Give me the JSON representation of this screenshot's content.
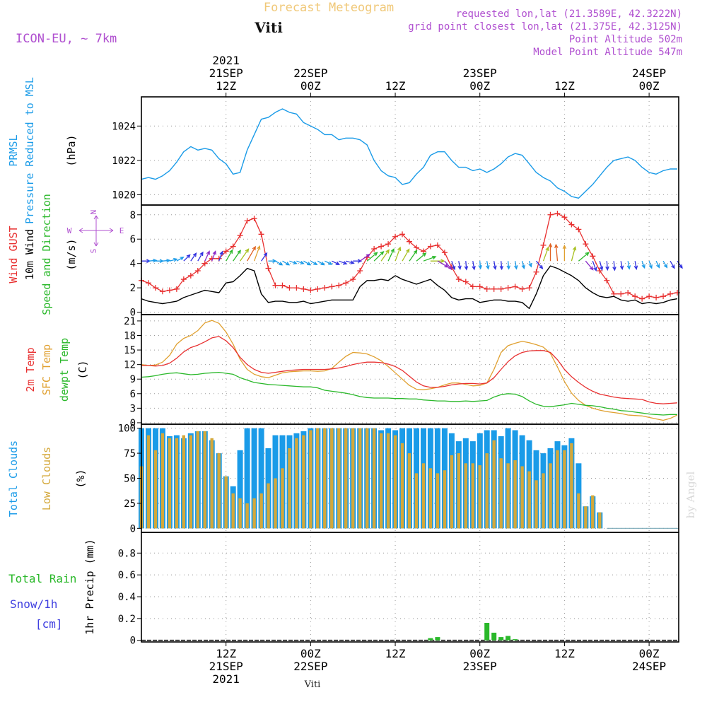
{
  "header": {
    "title": "Forecast Meteogram",
    "location": "Viti",
    "model": "ICON-EU, ~ 7km",
    "requested": "requested lon,lat (21.3589E, 42.3222N)",
    "gridpoint": "grid point closest lon,lat (21.375E, 42.3125N)",
    "point_alt": "Point Altitude 502m",
    "model_alt": "Model Point Altitude 547m",
    "watermark": "by Angel",
    "footer_location": "Viti"
  },
  "time_axis": {
    "top_labels": [
      {
        "t": 12,
        "lines": [
          "2021",
          "21SEP",
          "12Z"
        ]
      },
      {
        "t": 24,
        "lines": [
          "22SEP",
          "00Z"
        ]
      },
      {
        "t": 36,
        "lines": [
          "12Z"
        ]
      },
      {
        "t": 48,
        "lines": [
          "23SEP",
          "00Z"
        ]
      },
      {
        "t": 60,
        "lines": [
          "12Z"
        ]
      },
      {
        "t": 72,
        "lines": [
          "24SEP",
          "00Z"
        ]
      }
    ],
    "bottom_labels": [
      {
        "t": 12,
        "lines": [
          "12Z",
          "21SEP",
          "2021"
        ]
      },
      {
        "t": 24,
        "lines": [
          "00Z",
          "22SEP"
        ]
      },
      {
        "t": 36,
        "lines": [
          "12Z"
        ]
      },
      {
        "t": 48,
        "lines": [
          "00Z",
          "23SEP"
        ]
      },
      {
        "t": 60,
        "lines": [
          "12Z"
        ]
      },
      {
        "t": 72,
        "lines": [
          "00Z",
          "24SEP"
        ]
      }
    ]
  },
  "panel_labels": {
    "prmsl": [
      {
        "text": "PRMSL",
        "color": "#1a9be8"
      },
      {
        "text": "Pressure Reduced to MSL",
        "color": "#1a9be8"
      },
      {
        "text": "(hPa)",
        "color": "#000000"
      }
    ],
    "wind": [
      {
        "text": "Wind GUST",
        "color": "#e83030"
      },
      {
        "text": "10m Wind",
        "color": "#000000"
      },
      {
        "text": "Speed and Direction",
        "color": "#2ab82a"
      },
      {
        "text": "(m/s)",
        "color": "#000000"
      }
    ],
    "compass": {
      "n": "N",
      "s": "S",
      "w": "W",
      "e": "E"
    },
    "temp": [
      {
        "text": "2m Temp",
        "color": "#e83030"
      },
      {
        "text": "SFC Temp",
        "color": "#e0a030"
      },
      {
        "text": "dewpt Temp",
        "color": "#2ab82a"
      },
      {
        "text": "(C)",
        "color": "#000000"
      }
    ],
    "clouds": [
      {
        "text": "Total Clouds",
        "color": "#1a9be8"
      },
      {
        "text": "Low Clouds",
        "color": "#d4a83a"
      },
      {
        "text": "(%)",
        "color": "#000000"
      }
    ],
    "precip_left": [
      {
        "text": "Total  Rain",
        "color": "#2ab82a"
      },
      {
        "text": "Snow/1h",
        "color": "#4040e0"
      },
      {
        "text": "[cm]",
        "color": "#4040e0"
      }
    ],
    "precip_axis": {
      "text": "1hr Precip (mm)",
      "color": "#000000"
    }
  },
  "colors": {
    "pressure": "#1a9be8",
    "gust": "#e83030",
    "wind": "#000000",
    "temp2m": "#e83030",
    "sfc": "#e0a030",
    "dewpt": "#2ab82a",
    "total_cloud": "#1a9be8",
    "low_cloud": "#d4a83a",
    "rain": "#2ab82a",
    "title": "#f0c878",
    "meta": "#b050d0"
  },
  "chart_data": [
    {
      "type": "line",
      "name": "prmsl",
      "ylim": [
        1019.4,
        1025.7
      ],
      "yticks": [
        "1020",
        "1022",
        "1024"
      ],
      "x": [
        0,
        1,
        2,
        3,
        4,
        5,
        6,
        7,
        8,
        9,
        10,
        11,
        12,
        13,
        14,
        15,
        16,
        17,
        18,
        19,
        20,
        21,
        22,
        23,
        24,
        25,
        26,
        27,
        28,
        29,
        30,
        31,
        32,
        33,
        34,
        35,
        36,
        37,
        38,
        39,
        40,
        41,
        42,
        43,
        44,
        45,
        46,
        47,
        48,
        49,
        50,
        51,
        52,
        53,
        54,
        55,
        56,
        57,
        58,
        59,
        60,
        61,
        62,
        63,
        64,
        65,
        66,
        67,
        68,
        69,
        70,
        71,
        72,
        73,
        74,
        75,
        76
      ],
      "values": [
        1020.9,
        1021.0,
        1020.9,
        1021.1,
        1021.4,
        1021.9,
        1022.5,
        1022.8,
        1022.6,
        1022.7,
        1022.6,
        1022.1,
        1021.8,
        1021.2,
        1021.3,
        1022.6,
        1023.5,
        1024.4,
        1024.5,
        1024.8,
        1025.0,
        1024.8,
        1024.7,
        1024.2,
        1024.0,
        1023.8,
        1023.5,
        1023.5,
        1023.2,
        1023.3,
        1023.3,
        1023.2,
        1022.9,
        1022.0,
        1021.4,
        1021.1,
        1021.0,
        1020.6,
        1020.7,
        1021.2,
        1021.6,
        1022.3,
        1022.5,
        1022.5,
        1022.0,
        1021.6,
        1021.6,
        1021.4,
        1021.5,
        1021.3,
        1021.5,
        1021.8,
        1022.2,
        1022.4,
        1022.3,
        1021.8,
        1021.3,
        1021.0,
        1020.8,
        1020.4,
        1020.2,
        1019.9,
        1019.8,
        1020.2,
        1020.6,
        1021.1,
        1021.6,
        1022.0,
        1022.1,
        1022.2,
        1022.0,
        1021.6,
        1021.3,
        1021.2,
        1021.4,
        1021.5,
        1021.5
      ]
    },
    {
      "type": "line",
      "name": "wind",
      "ylim": [
        -0.2,
        8.8
      ],
      "yticks": [
        "0",
        "2",
        "4",
        "6",
        "8"
      ],
      "x": [
        0,
        1,
        2,
        3,
        4,
        5,
        6,
        7,
        8,
        9,
        10,
        11,
        12,
        13,
        14,
        15,
        16,
        17,
        18,
        19,
        20,
        21,
        22,
        23,
        24,
        25,
        26,
        27,
        28,
        29,
        30,
        31,
        32,
        33,
        34,
        35,
        36,
        37,
        38,
        39,
        40,
        41,
        42,
        43,
        44,
        45,
        46,
        47,
        48,
        49,
        50,
        51,
        52,
        53,
        54,
        55,
        56,
        57,
        58,
        59,
        60,
        61,
        62,
        63,
        64,
        65,
        66,
        67,
        68,
        69,
        70,
        71,
        72,
        73,
        74,
        75,
        76
      ],
      "gust": [
        2.6,
        2.4,
        2.0,
        1.7,
        1.8,
        1.9,
        2.7,
        3.0,
        3.4,
        4.0,
        4.4,
        4.4,
        5.0,
        5.4,
        6.3,
        7.5,
        7.7,
        6.4,
        3.6,
        2.2,
        2.2,
        2.0,
        2.0,
        1.9,
        1.8,
        1.9,
        2.0,
        2.1,
        2.2,
        2.4,
        2.7,
        3.4,
        4.5,
        5.2,
        5.4,
        5.6,
        6.2,
        6.4,
        5.8,
        5.3,
        5.0,
        5.4,
        5.5,
        4.9,
        3.7,
        2.7,
        2.5,
        2.1,
        2.1,
        1.9,
        1.9,
        1.9,
        2.0,
        2.1,
        1.9,
        2.0,
        3.3,
        5.5,
        8.0,
        8.1,
        7.8,
        7.2,
        6.8,
        5.6,
        4.6,
        3.4,
        2.6,
        1.5,
        1.5,
        1.6,
        1.3,
        1.1,
        1.3,
        1.2,
        1.3,
        1.5,
        1.6
      ],
      "speed": [
        1.1,
        0.9,
        0.8,
        0.7,
        0.8,
        0.9,
        1.2,
        1.4,
        1.6,
        1.8,
        1.7,
        1.6,
        2.4,
        2.5,
        3.0,
        3.6,
        3.4,
        1.5,
        0.8,
        0.9,
        0.9,
        0.8,
        0.8,
        0.9,
        0.7,
        0.8,
        0.9,
        1.0,
        1.0,
        1.0,
        1.0,
        2.1,
        2.6,
        2.6,
        2.7,
        2.6,
        3.0,
        2.7,
        2.5,
        2.3,
        2.5,
        2.7,
        2.2,
        1.8,
        1.2,
        1.0,
        1.1,
        1.1,
        0.8,
        0.9,
        1.0,
        1.0,
        0.9,
        0.9,
        0.8,
        0.3,
        1.5,
        3.0,
        3.8,
        3.6,
        3.3,
        3.0,
        2.6,
        2.0,
        1.6,
        1.3,
        1.2,
        1.3,
        1.0,
        0.9,
        1.0,
        0.7,
        0.8,
        0.7,
        0.8,
        1.0,
        1.1
      ],
      "direction_deg": [
        270,
        265,
        270,
        265,
        255,
        240,
        225,
        215,
        210,
        205,
        200,
        200,
        210,
        215,
        215,
        210,
        200,
        215,
        270,
        300,
        300,
        290,
        290,
        300,
        300,
        300,
        295,
        295,
        290,
        285,
        270,
        235,
        230,
        225,
        215,
        205,
        200,
        210,
        215,
        230,
        250,
        270,
        300,
        320,
        340,
        350,
        355,
        350,
        355,
        350,
        350,
        355,
        355,
        350,
        345,
        340,
        320,
        200,
        180,
        175,
        180,
        195,
        230,
        320,
        340,
        345,
        355,
        355,
        350,
        350,
        350,
        340,
        340,
        335,
        330,
        330,
        325
      ]
    },
    {
      "type": "line",
      "name": "temperature",
      "ylim": [
        -0.3,
        22.3
      ],
      "yticks": [
        "0",
        "3",
        "6",
        "9",
        "12",
        "15",
        "18",
        "21"
      ],
      "x": [
        0,
        1,
        2,
        3,
        4,
        5,
        6,
        7,
        8,
        9,
        10,
        11,
        12,
        13,
        14,
        15,
        16,
        17,
        18,
        19,
        20,
        21,
        22,
        23,
        24,
        25,
        26,
        27,
        28,
        29,
        30,
        31,
        32,
        33,
        34,
        35,
        36,
        37,
        38,
        39,
        40,
        41,
        42,
        43,
        44,
        45,
        46,
        47,
        48,
        49,
        50,
        51,
        52,
        53,
        54,
        55,
        56,
        57,
        58,
        59,
        60,
        61,
        62,
        63,
        64,
        65,
        66,
        67,
        68,
        69,
        70,
        71,
        72,
        73,
        74,
        75,
        76
      ],
      "temp2m": [
        11.8,
        11.8,
        11.7,
        11.8,
        12.3,
        13.3,
        14.6,
        15.5,
        16.0,
        16.7,
        17.5,
        17.8,
        16.9,
        15.5,
        13.5,
        12.0,
        11.0,
        10.4,
        10.2,
        10.4,
        10.6,
        10.8,
        10.9,
        11.0,
        11.0,
        11.0,
        11.0,
        11.1,
        11.3,
        11.6,
        12.0,
        12.3,
        12.5,
        12.5,
        12.4,
        12.1,
        11.6,
        10.8,
        9.6,
        8.4,
        7.6,
        7.3,
        7.3,
        7.5,
        7.8,
        8.0,
        8.1,
        8.1,
        8.0,
        8.2,
        9.3,
        11.0,
        12.6,
        13.8,
        14.5,
        14.8,
        14.9,
        14.9,
        14.5,
        13.0,
        11.0,
        9.5,
        8.3,
        7.3,
        6.5,
        5.9,
        5.6,
        5.3,
        5.1,
        5.0,
        4.9,
        4.8,
        4.3,
        4.0,
        3.9,
        4.0,
        4.1
      ],
      "sfc": [
        12.0,
        11.8,
        11.9,
        12.5,
        13.9,
        16.2,
        17.4,
        18.0,
        19.0,
        20.6,
        21.1,
        20.5,
        18.7,
        16.2,
        13.1,
        11.0,
        10.0,
        9.5,
        9.3,
        9.8,
        10.3,
        10.5,
        10.6,
        10.7,
        10.7,
        10.6,
        10.7,
        11.2,
        12.5,
        13.7,
        14.5,
        14.4,
        14.2,
        13.6,
        12.8,
        11.6,
        10.3,
        9.0,
        7.7,
        6.9,
        6.8,
        7.0,
        7.3,
        7.8,
        8.2,
        8.2,
        7.9,
        7.6,
        7.7,
        8.2,
        11.0,
        14.5,
        15.9,
        16.4,
        16.8,
        16.5,
        16.1,
        15.6,
        14.3,
        11.5,
        8.5,
        6.1,
        4.6,
        3.6,
        3.0,
        2.6,
        2.3,
        2.1,
        1.9,
        1.6,
        1.5,
        1.4,
        1.1,
        0.8,
        0.5,
        0.9,
        1.6
      ],
      "dewpt": [
        9.4,
        9.5,
        9.7,
        10.0,
        10.2,
        10.3,
        10.1,
        9.9,
        10.0,
        10.2,
        10.3,
        10.4,
        10.2,
        10.0,
        9.3,
        8.8,
        8.3,
        8.1,
        7.9,
        7.8,
        7.7,
        7.6,
        7.5,
        7.4,
        7.4,
        7.2,
        6.7,
        6.5,
        6.3,
        6.1,
        5.8,
        5.4,
        5.2,
        5.1,
        5.1,
        5.1,
        5.0,
        5.0,
        4.9,
        4.9,
        4.7,
        4.6,
        4.5,
        4.5,
        4.4,
        4.4,
        4.5,
        4.4,
        4.5,
        4.6,
        5.3,
        5.8,
        6.0,
        5.9,
        5.4,
        4.5,
        3.8,
        3.4,
        3.3,
        3.5,
        3.7,
        4.0,
        3.8,
        3.6,
        3.5,
        3.3,
        3.0,
        2.8,
        2.5,
        2.4,
        2.2,
        2.0,
        1.8,
        1.7,
        1.6,
        1.7,
        1.7
      ]
    },
    {
      "type": "bar",
      "name": "clouds",
      "ylim": [
        -4,
        104
      ],
      "yticks": [
        "0",
        "25",
        "50",
        "75",
        "100"
      ],
      "x": [
        0,
        1,
        2,
        3,
        4,
        5,
        6,
        7,
        8,
        9,
        10,
        11,
        12,
        13,
        14,
        15,
        16,
        17,
        18,
        19,
        20,
        21,
        22,
        23,
        24,
        25,
        26,
        27,
        28,
        29,
        30,
        31,
        32,
        33,
        34,
        35,
        36,
        37,
        38,
        39,
        40,
        41,
        42,
        43,
        44,
        45,
        46,
        47,
        48,
        49,
        50,
        51,
        52,
        53,
        54,
        55,
        56,
        57,
        58,
        59,
        60,
        61,
        62,
        63,
        64,
        65,
        66,
        67,
        68,
        69,
        70,
        71,
        72,
        73,
        74,
        75,
        76
      ],
      "total": [
        100,
        100,
        100,
        100,
        92,
        93,
        90,
        95,
        97,
        97,
        88,
        75,
        52,
        42,
        78,
        100,
        100,
        100,
        80,
        93,
        93,
        93,
        95,
        97,
        100,
        100,
        100,
        100,
        100,
        100,
        100,
        100,
        100,
        100,
        98,
        100,
        98,
        100,
        100,
        100,
        100,
        100,
        100,
        100,
        95,
        87,
        90,
        87,
        95,
        98,
        98,
        92,
        100,
        98,
        93,
        88,
        78,
        75,
        80,
        87,
        83,
        90,
        65,
        22,
        32,
        16,
        0,
        0,
        0,
        0,
        0,
        0,
        0,
        0,
        0,
        0,
        0
      ],
      "low": [
        62,
        93,
        78,
        95,
        90,
        90,
        93,
        93,
        97,
        97,
        90,
        75,
        52,
        35,
        30,
        25,
        30,
        35,
        45,
        50,
        60,
        80,
        90,
        93,
        98,
        100,
        100,
        100,
        100,
        100,
        100,
        100,
        100,
        100,
        95,
        95,
        93,
        85,
        75,
        55,
        65,
        60,
        55,
        58,
        73,
        75,
        65,
        65,
        63,
        75,
        88,
        70,
        65,
        68,
        62,
        57,
        48,
        55,
        65,
        78,
        78,
        85,
        35,
        22,
        33,
        16,
        0,
        0,
        0,
        0,
        0,
        0,
        0,
        0,
        0,
        0,
        0
      ]
    },
    {
      "type": "bar",
      "name": "precip",
      "ylim": [
        -0.015,
        0.99
      ],
      "yticks": [
        "0",
        "0.2",
        "0.4",
        "0.6",
        "0.8"
      ],
      "x": [
        0,
        1,
        2,
        3,
        4,
        5,
        6,
        7,
        8,
        9,
        10,
        11,
        12,
        13,
        14,
        15,
        16,
        17,
        18,
        19,
        20,
        21,
        22,
        23,
        24,
        25,
        26,
        27,
        28,
        29,
        30,
        31,
        32,
        33,
        34,
        35,
        36,
        37,
        38,
        39,
        40,
        41,
        42,
        43,
        44,
        45,
        46,
        47,
        48,
        49,
        50,
        51,
        52,
        53,
        54,
        55,
        56,
        57,
        58,
        59,
        60,
        61,
        62,
        63,
        64,
        65,
        66,
        67,
        68,
        69,
        70,
        71,
        72,
        73,
        74,
        75,
        76
      ],
      "rain": [
        0,
        0,
        0,
        0,
        0,
        0,
        0,
        0,
        0,
        0,
        0,
        0,
        0,
        0,
        0,
        0,
        0,
        0,
        0,
        0,
        0,
        0,
        0,
        0,
        0,
        0,
        0,
        0,
        0,
        0,
        0,
        0,
        0,
        0,
        0,
        0,
        0,
        0,
        0,
        0,
        0,
        0.02,
        0.03,
        0,
        0,
        0,
        0,
        0,
        0,
        0.16,
        0.07,
        0.03,
        0.04,
        0.01,
        0,
        0,
        0,
        0,
        0,
        0,
        0,
        0,
        0,
        0,
        0,
        0,
        0,
        0,
        0,
        0,
        0,
        0,
        0,
        0,
        0,
        0,
        0
      ]
    }
  ]
}
